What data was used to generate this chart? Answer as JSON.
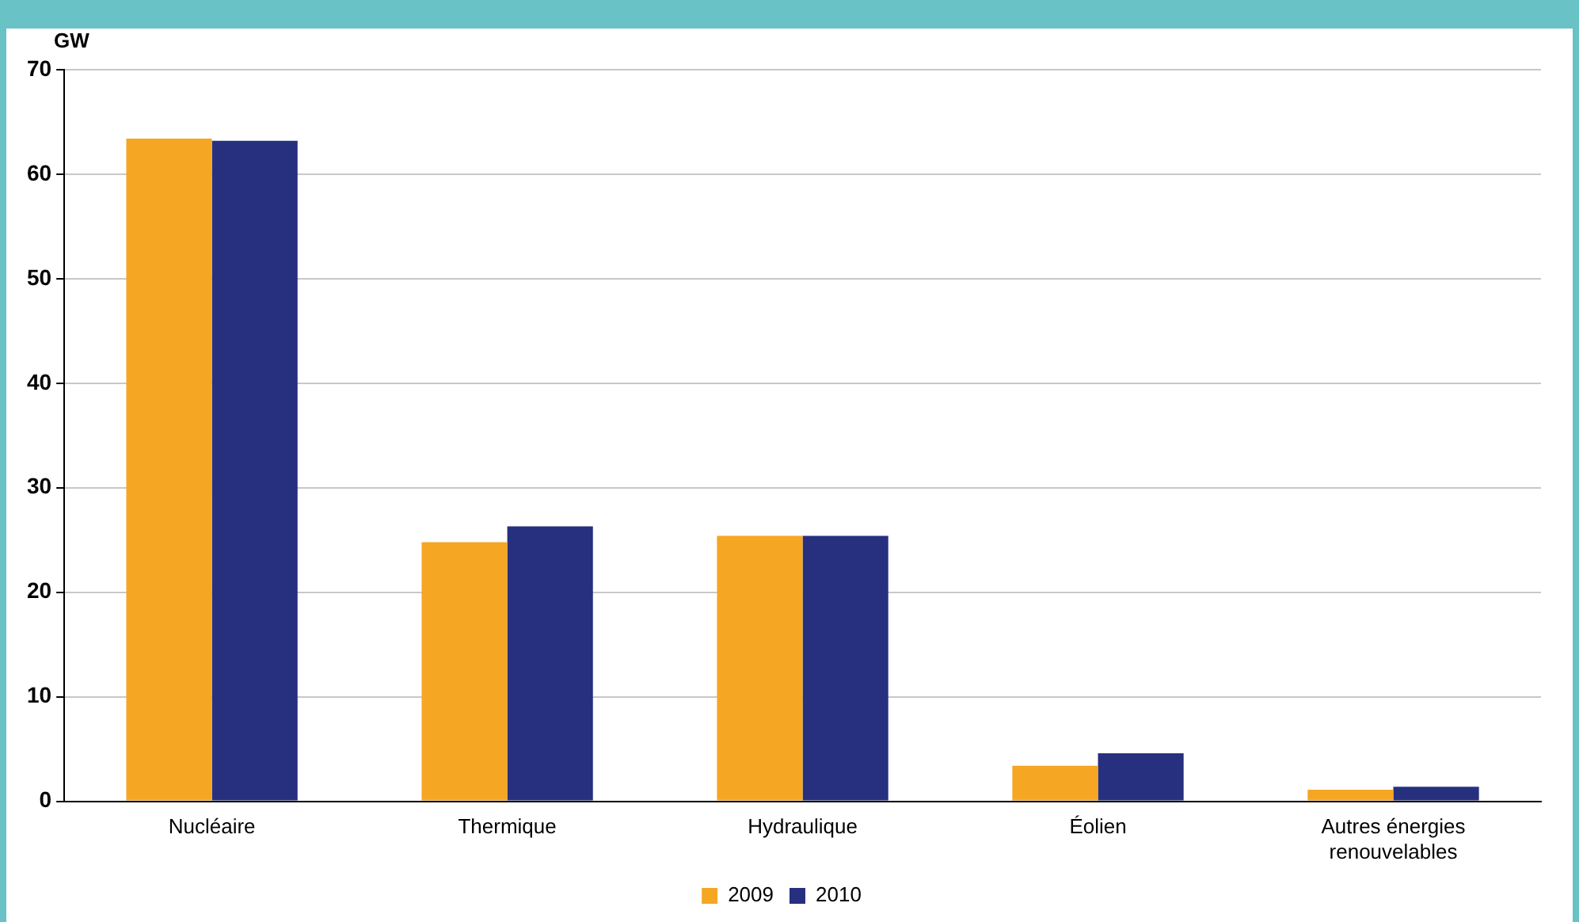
{
  "chart_data": {
    "type": "bar",
    "ylabel": "GW",
    "categories": [
      "Nucléaire",
      "Thermique",
      "Hydraulique",
      "Éolien",
      "Autres énergies renouvelables"
    ],
    "series": [
      {
        "name": "2009",
        "color": "#f5a623",
        "values": [
          63.4,
          24.8,
          25.4,
          3.4,
          1.1
        ]
      },
      {
        "name": "2010",
        "color": "#26307f",
        "values": [
          63.2,
          26.3,
          25.4,
          4.6,
          1.4
        ]
      }
    ],
    "ylim": [
      0,
      70
    ],
    "yticks": [
      0,
      10,
      20,
      30,
      40,
      50,
      60,
      70
    ],
    "grid": "y",
    "legend": "bottom"
  }
}
